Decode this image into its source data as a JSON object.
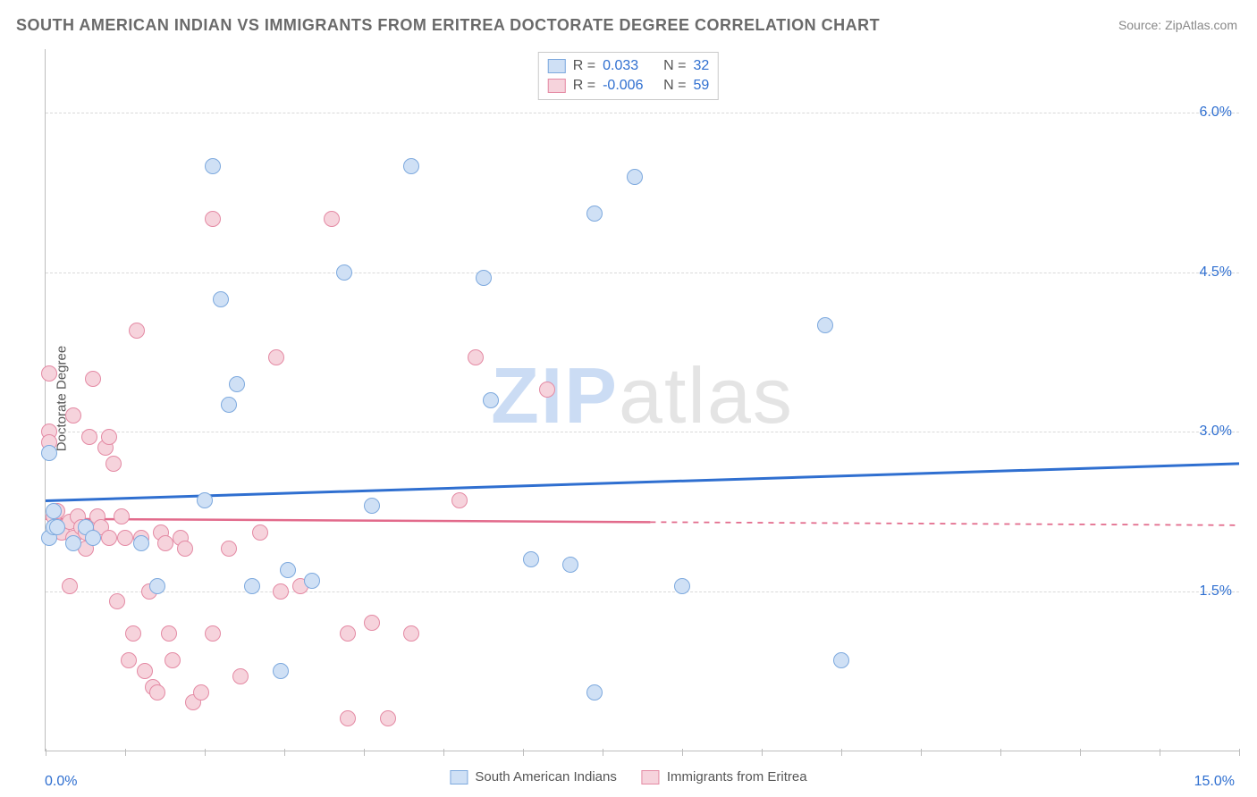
{
  "title": "SOUTH AMERICAN INDIAN VS IMMIGRANTS FROM ERITREA DOCTORATE DEGREE CORRELATION CHART",
  "source_label": "Source: ZipAtlas.com",
  "ylabel": "Doctorate Degree",
  "watermark_a": "ZIP",
  "watermark_b": "atlas",
  "chart": {
    "type": "scatter",
    "xlim": [
      0.0,
      15.0
    ],
    "ylim": [
      0.0,
      6.6
    ],
    "x_ticks_major": [
      0.0,
      15.0
    ],
    "x_tick_labels": [
      "0.0%",
      "15.0%"
    ],
    "y_gridlines": [
      1.5,
      3.0,
      4.5,
      6.0
    ],
    "y_tick_labels": [
      "1.5%",
      "3.0%",
      "4.5%",
      "6.0%"
    ],
    "x_minor_ticks": [
      0,
      1,
      2,
      3,
      4,
      5,
      6,
      7,
      8,
      9,
      10,
      11,
      12,
      13,
      14,
      15
    ],
    "background_color": "#ffffff",
    "grid_color": "#d9d9d9",
    "axis_color": "#bdbdbd",
    "marker_radius": 9,
    "marker_border_width": 1.5,
    "series": [
      {
        "name": "South American Indians",
        "fill": "#cfe0f5",
        "stroke": "#7da9de",
        "R": "0.033",
        "N": "32",
        "trend": {
          "y_at_x0": 2.35,
          "y_at_x15": 2.7,
          "color": "#2f6fd0",
          "width": 3,
          "dashed_from_x": 15.0
        },
        "points": [
          [
            0.05,
            2.8
          ],
          [
            0.05,
            2.0
          ],
          [
            0.1,
            2.25
          ],
          [
            0.1,
            2.1
          ],
          [
            0.35,
            1.95
          ],
          [
            0.15,
            2.1
          ],
          [
            0.5,
            2.1
          ],
          [
            0.6,
            2.0
          ],
          [
            1.2,
            1.95
          ],
          [
            1.4,
            1.55
          ],
          [
            2.0,
            2.35
          ],
          [
            2.2,
            4.25
          ],
          [
            2.3,
            3.25
          ],
          [
            2.1,
            5.5
          ],
          [
            2.4,
            3.45
          ],
          [
            2.6,
            1.55
          ],
          [
            2.95,
            0.75
          ],
          [
            3.05,
            1.7
          ],
          [
            3.35,
            1.6
          ],
          [
            3.75,
            4.5
          ],
          [
            4.1,
            2.3
          ],
          [
            4.6,
            5.5
          ],
          [
            5.5,
            4.45
          ],
          [
            5.6,
            3.3
          ],
          [
            6.1,
            1.8
          ],
          [
            6.6,
            1.75
          ],
          [
            6.9,
            0.55
          ],
          [
            6.9,
            5.05
          ],
          [
            7.4,
            5.4
          ],
          [
            8.0,
            1.55
          ],
          [
            10.0,
            0.85
          ],
          [
            9.8,
            4.0
          ]
        ]
      },
      {
        "name": "Immigrants from Eritrea",
        "fill": "#f6d3dc",
        "stroke": "#e48aa4",
        "R": "-0.006",
        "N": "59",
        "trend": {
          "y_at_x0": 2.18,
          "y_at_x15": 2.12,
          "color": "#e26a8b",
          "width": 2.5,
          "dashed_from_x": 7.6
        },
        "points": [
          [
            0.05,
            3.55
          ],
          [
            0.05,
            3.0
          ],
          [
            0.05,
            2.9
          ],
          [
            0.1,
            2.2
          ],
          [
            0.15,
            2.25
          ],
          [
            0.2,
            2.1
          ],
          [
            0.2,
            2.05
          ],
          [
            0.3,
            2.15
          ],
          [
            0.35,
            2.0
          ],
          [
            0.3,
            1.55
          ],
          [
            0.35,
            3.15
          ],
          [
            0.4,
            2.2
          ],
          [
            0.45,
            2.1
          ],
          [
            0.5,
            2.05
          ],
          [
            0.5,
            1.9
          ],
          [
            0.55,
            2.95
          ],
          [
            0.6,
            3.5
          ],
          [
            0.65,
            2.2
          ],
          [
            0.7,
            2.1
          ],
          [
            0.75,
            2.85
          ],
          [
            0.8,
            2.95
          ],
          [
            0.8,
            2.0
          ],
          [
            0.85,
            2.7
          ],
          [
            0.9,
            1.4
          ],
          [
            0.95,
            2.2
          ],
          [
            1.0,
            2.0
          ],
          [
            1.05,
            0.85
          ],
          [
            1.1,
            1.1
          ],
          [
            1.15,
            3.95
          ],
          [
            1.2,
            2.0
          ],
          [
            1.25,
            0.75
          ],
          [
            1.3,
            1.5
          ],
          [
            1.35,
            0.6
          ],
          [
            1.4,
            0.55
          ],
          [
            1.45,
            2.05
          ],
          [
            1.5,
            1.95
          ],
          [
            1.55,
            1.1
          ],
          [
            1.6,
            0.85
          ],
          [
            1.7,
            2.0
          ],
          [
            1.75,
            1.9
          ],
          [
            1.85,
            0.45
          ],
          [
            1.95,
            0.55
          ],
          [
            2.1,
            5.0
          ],
          [
            2.1,
            1.1
          ],
          [
            2.3,
            1.9
          ],
          [
            2.45,
            0.7
          ],
          [
            2.7,
            2.05
          ],
          [
            2.9,
            3.7
          ],
          [
            2.95,
            1.5
          ],
          [
            3.2,
            1.55
          ],
          [
            3.6,
            5.0
          ],
          [
            3.8,
            0.3
          ],
          [
            3.8,
            1.1
          ],
          [
            4.1,
            1.2
          ],
          [
            4.3,
            0.3
          ],
          [
            5.2,
            2.35
          ],
          [
            5.4,
            3.7
          ],
          [
            6.3,
            3.4
          ],
          [
            4.6,
            1.1
          ]
        ]
      }
    ]
  },
  "stats_legend": {
    "r_label": "R = ",
    "n_label": "N = "
  },
  "bottom_legend": {
    "items": [
      "South American Indians",
      "Immigrants from Eritrea"
    ]
  }
}
